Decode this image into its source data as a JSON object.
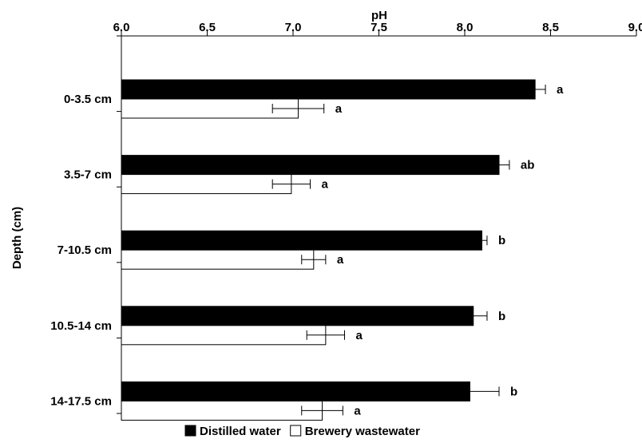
{
  "chart_data": {
    "type": "bar",
    "orientation": "horizontal",
    "xlabel": "pH",
    "ylabel": "Depth (cm)",
    "xlim": [
      6.0,
      9.0
    ],
    "xticks": [
      "6.0",
      "6.5",
      "7.0",
      "7.5",
      "8.0",
      "8.5",
      "9.0"
    ],
    "categories": [
      "0-3.5 cm",
      "3.5-7 cm",
      "7-10.5 cm",
      "10.5-14 cm",
      "14-17.5 cm"
    ],
    "series": [
      {
        "name": "Distilled water",
        "color": "#000000",
        "values": [
          8.41,
          8.2,
          8.1,
          8.05,
          8.03
        ],
        "errors": [
          0.06,
          0.06,
          0.03,
          0.08,
          0.17
        ],
        "letters": [
          "a",
          "ab",
          "b",
          "b",
          "b"
        ]
      },
      {
        "name": "Brewery wastewater",
        "color": "#ffffff",
        "values": [
          7.03,
          6.99,
          7.12,
          7.19,
          7.17
        ],
        "errors": [
          0.15,
          0.11,
          0.07,
          0.11,
          0.12
        ],
        "letters": [
          "a",
          "a",
          "a",
          "a",
          "a"
        ]
      }
    ],
    "axis_position": "top",
    "grid": false,
    "legend_position": "bottom-center"
  }
}
